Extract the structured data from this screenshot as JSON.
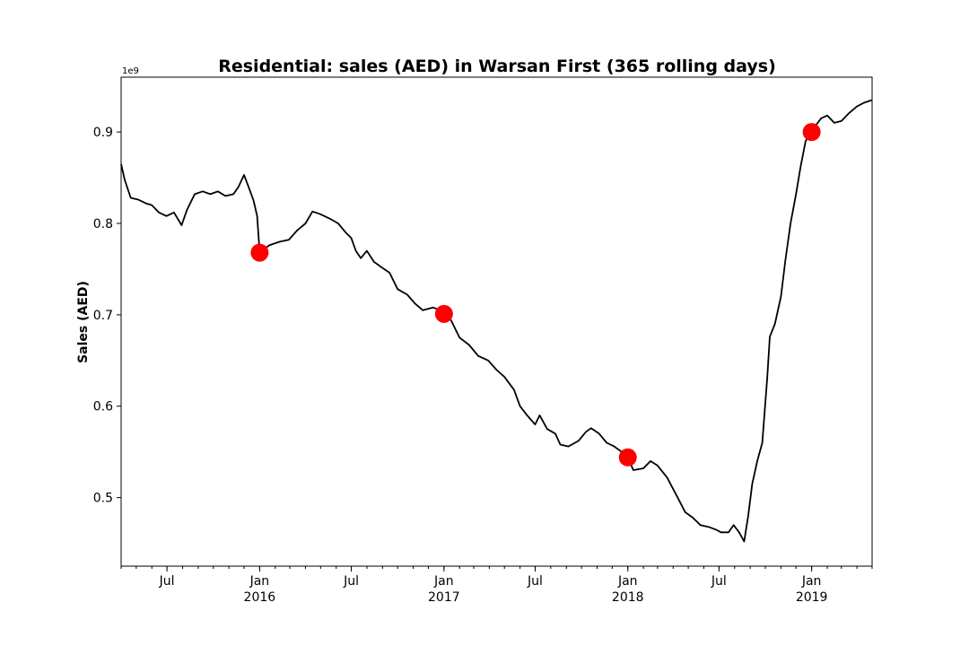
{
  "chart_data": {
    "type": "line",
    "title": "Residential: sales (AED) in Warsan First (365 rolling days)",
    "xlabel": "",
    "ylabel": "Sales (AED)",
    "y_offset_label": "1e9",
    "xlim": [
      "2015-04-01",
      "2019-05-01"
    ],
    "ylim": [
      0.425,
      0.96
    ],
    "grid": false,
    "line_color": "#000000",
    "marker_color": "#ff0000",
    "y_ticks": [
      {
        "value": 0.5,
        "label": "0.5"
      },
      {
        "value": 0.6,
        "label": "0.6"
      },
      {
        "value": 0.7,
        "label": "0.7"
      },
      {
        "value": 0.8,
        "label": "0.8"
      },
      {
        "value": 0.9,
        "label": "0.9"
      }
    ],
    "x_ticks": [
      {
        "date": "2015-07-01",
        "label": "Jul",
        "year": ""
      },
      {
        "date": "2016-01-01",
        "label": "Jan",
        "year": "2016"
      },
      {
        "date": "2016-07-01",
        "label": "Jul",
        "year": ""
      },
      {
        "date": "2017-01-01",
        "label": "Jan",
        "year": "2017"
      },
      {
        "date": "2017-07-01",
        "label": "Jul",
        "year": ""
      },
      {
        "date": "2018-01-01",
        "label": "Jan",
        "year": "2018"
      },
      {
        "date": "2018-07-01",
        "label": "Jul",
        "year": ""
      },
      {
        "date": "2019-01-01",
        "label": "Jan",
        "year": "2019"
      }
    ],
    "series": [
      {
        "points": [
          [
            "2015-04-01",
            0.865
          ],
          [
            "2015-04-08",
            0.848
          ],
          [
            "2015-04-20",
            0.828
          ],
          [
            "2015-05-05",
            0.826
          ],
          [
            "2015-05-20",
            0.822
          ],
          [
            "2015-06-01",
            0.82
          ],
          [
            "2015-06-15",
            0.812
          ],
          [
            "2015-06-30",
            0.808
          ],
          [
            "2015-07-15",
            0.812
          ],
          [
            "2015-07-30",
            0.798
          ],
          [
            "2015-08-10",
            0.815
          ],
          [
            "2015-08-25",
            0.832
          ],
          [
            "2015-09-10",
            0.835
          ],
          [
            "2015-09-25",
            0.832
          ],
          [
            "2015-10-10",
            0.835
          ],
          [
            "2015-10-25",
            0.83
          ],
          [
            "2015-11-10",
            0.832
          ],
          [
            "2015-11-20",
            0.84
          ],
          [
            "2015-12-01",
            0.853
          ],
          [
            "2015-12-10",
            0.84
          ],
          [
            "2015-12-20",
            0.825
          ],
          [
            "2015-12-27",
            0.808
          ],
          [
            "2016-01-01",
            0.768
          ],
          [
            "2016-01-20",
            0.776
          ],
          [
            "2016-02-10",
            0.78
          ],
          [
            "2016-02-28",
            0.782
          ],
          [
            "2016-03-15",
            0.792
          ],
          [
            "2016-04-01",
            0.8
          ],
          [
            "2016-04-15",
            0.813
          ],
          [
            "2016-05-01",
            0.81
          ],
          [
            "2016-05-20",
            0.805
          ],
          [
            "2016-06-05",
            0.8
          ],
          [
            "2016-06-20",
            0.79
          ],
          [
            "2016-07-01",
            0.784
          ],
          [
            "2016-07-10",
            0.77
          ],
          [
            "2016-07-20",
            0.762
          ],
          [
            "2016-08-01",
            0.77
          ],
          [
            "2016-08-15",
            0.758
          ],
          [
            "2016-08-30",
            0.752
          ],
          [
            "2016-09-15",
            0.746
          ],
          [
            "2016-10-01",
            0.728
          ],
          [
            "2016-10-20",
            0.722
          ],
          [
            "2016-11-05",
            0.712
          ],
          [
            "2016-11-20",
            0.705
          ],
          [
            "2016-12-10",
            0.708
          ],
          [
            "2016-12-25",
            0.705
          ],
          [
            "2017-01-01",
            0.701
          ],
          [
            "2017-01-15",
            0.694
          ],
          [
            "2017-02-01",
            0.675
          ],
          [
            "2017-02-20",
            0.667
          ],
          [
            "2017-03-10",
            0.655
          ],
          [
            "2017-03-30",
            0.65
          ],
          [
            "2017-04-15",
            0.64
          ],
          [
            "2017-05-01",
            0.632
          ],
          [
            "2017-05-20",
            0.618
          ],
          [
            "2017-06-01",
            0.6
          ],
          [
            "2017-06-15",
            0.59
          ],
          [
            "2017-07-01",
            0.58
          ],
          [
            "2017-07-10",
            0.59
          ],
          [
            "2017-07-25",
            0.575
          ],
          [
            "2017-08-10",
            0.57
          ],
          [
            "2017-08-20",
            0.558
          ],
          [
            "2017-09-05",
            0.556
          ],
          [
            "2017-09-25",
            0.562
          ],
          [
            "2017-10-10",
            0.572
          ],
          [
            "2017-10-20",
            0.576
          ],
          [
            "2017-11-05",
            0.57
          ],
          [
            "2017-11-20",
            0.56
          ],
          [
            "2017-12-05",
            0.556
          ],
          [
            "2017-12-20",
            0.55
          ],
          [
            "2018-01-01",
            0.544
          ],
          [
            "2018-01-12",
            0.53
          ],
          [
            "2018-02-01",
            0.532
          ],
          [
            "2018-02-15",
            0.54
          ],
          [
            "2018-03-01",
            0.535
          ],
          [
            "2018-03-20",
            0.522
          ],
          [
            "2018-04-10",
            0.5
          ],
          [
            "2018-04-25",
            0.484
          ],
          [
            "2018-05-10",
            0.478
          ],
          [
            "2018-05-25",
            0.47
          ],
          [
            "2018-06-10",
            0.468
          ],
          [
            "2018-06-25",
            0.465
          ],
          [
            "2018-07-05",
            0.462
          ],
          [
            "2018-07-20",
            0.462
          ],
          [
            "2018-07-30",
            0.47
          ],
          [
            "2018-08-10",
            0.462
          ],
          [
            "2018-08-20",
            0.452
          ],
          [
            "2018-08-28",
            0.48
          ],
          [
            "2018-09-05",
            0.515
          ],
          [
            "2018-09-15",
            0.54
          ],
          [
            "2018-09-25",
            0.56
          ],
          [
            "2018-10-05",
            0.632
          ],
          [
            "2018-10-10",
            0.676
          ],
          [
            "2018-10-20",
            0.69
          ],
          [
            "2018-11-01",
            0.72
          ],
          [
            "2018-11-10",
            0.76
          ],
          [
            "2018-11-20",
            0.8
          ],
          [
            "2018-12-01",
            0.832
          ],
          [
            "2018-12-10",
            0.862
          ],
          [
            "2018-12-20",
            0.89
          ],
          [
            "2019-01-01",
            0.9
          ],
          [
            "2019-01-10",
            0.908
          ],
          [
            "2019-01-20",
            0.915
          ],
          [
            "2019-02-01",
            0.918
          ],
          [
            "2019-02-15",
            0.91
          ],
          [
            "2019-03-01",
            0.912
          ],
          [
            "2019-03-15",
            0.92
          ],
          [
            "2019-04-01",
            0.928
          ],
          [
            "2019-04-15",
            0.932
          ],
          [
            "2019-05-01",
            0.935
          ]
        ]
      }
    ],
    "markers": [
      {
        "date": "2016-01-01",
        "value": 0.768
      },
      {
        "date": "2017-01-01",
        "value": 0.701
      },
      {
        "date": "2018-01-01",
        "value": 0.544
      },
      {
        "date": "2019-01-01",
        "value": 0.9
      }
    ]
  }
}
